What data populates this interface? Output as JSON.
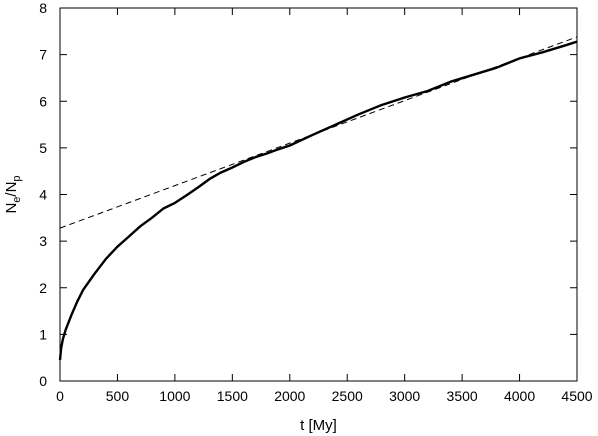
{
  "chart_data": {
    "type": "line",
    "xlabel": "t [My]",
    "ylabel": {
      "main": "N",
      "sub1": "e",
      "sep": "/N",
      "sub2": "p"
    },
    "xlim": [
      0,
      4500
    ],
    "ylim": [
      0,
      8
    ],
    "x_ticks": [
      0,
      500,
      1000,
      1500,
      2000,
      2500,
      3000,
      3500,
      4000,
      4500
    ],
    "y_ticks": [
      0,
      1,
      2,
      3,
      4,
      5,
      6,
      7,
      8
    ],
    "grid": false,
    "legend": "none",
    "series": [
      {
        "style": "solid",
        "color": "#000000",
        "x": [
          0,
          10,
          25,
          50,
          100,
          150,
          200,
          300,
          400,
          500,
          600,
          700,
          800,
          900,
          1000,
          1100,
          1200,
          1300,
          1400,
          1500,
          1600,
          1700,
          1800,
          1900,
          2000,
          2200,
          2400,
          2600,
          2800,
          3000,
          3200,
          3400,
          3600,
          3800,
          4000,
          4200,
          4400,
          4500
        ],
        "y": [
          0.45,
          0.7,
          0.9,
          1.1,
          1.42,
          1.7,
          1.95,
          2.3,
          2.62,
          2.88,
          3.1,
          3.32,
          3.5,
          3.7,
          3.82,
          3.98,
          4.15,
          4.33,
          4.47,
          4.58,
          4.7,
          4.8,
          4.88,
          4.97,
          5.05,
          5.28,
          5.5,
          5.72,
          5.92,
          6.08,
          6.22,
          6.42,
          6.57,
          6.72,
          6.92,
          7.05,
          7.2,
          7.28
        ]
      },
      {
        "style": "dashed",
        "color": "#000000",
        "x": [
          0,
          4500
        ],
        "y": [
          3.28,
          7.38
        ]
      }
    ]
  }
}
